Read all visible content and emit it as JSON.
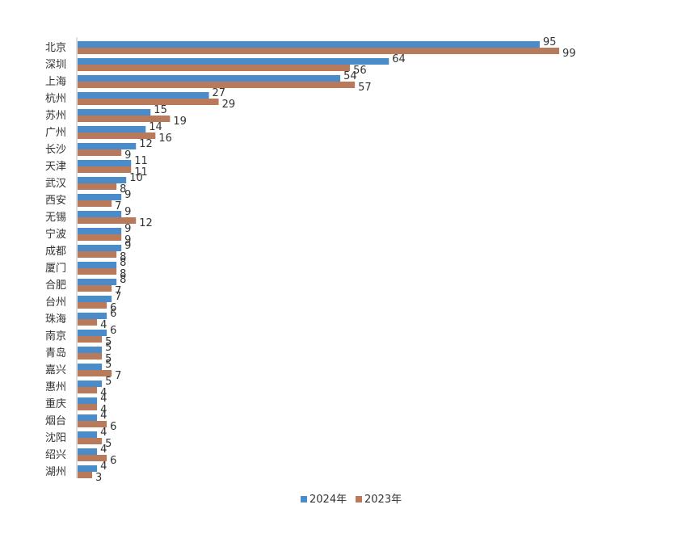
{
  "chart_data": {
    "type": "bar",
    "orientation": "horizontal",
    "title": "",
    "xlabel": "",
    "ylabel": "",
    "categories": [
      "北京",
      "深圳",
      "上海",
      "杭州",
      "苏州",
      "广州",
      "长沙",
      "天津",
      "武汉",
      "西安",
      "无锡",
      "宁波",
      "成都",
      "厦门",
      "合肥",
      "台州",
      "珠海",
      "南京",
      "青岛",
      "嘉兴",
      "惠州",
      "重庆",
      "烟台",
      "沈阳",
      "绍兴",
      "湖州"
    ],
    "series": [
      {
        "name": "2024年",
        "color": "#4a8bc9",
        "values": [
          95,
          64,
          54,
          27,
          15,
          14,
          12,
          11,
          10,
          9,
          9,
          9,
          9,
          8,
          8,
          7,
          6,
          6,
          5,
          5,
          5,
          4,
          4,
          4,
          4,
          4
        ]
      },
      {
        "name": "2023年",
        "color": "#b87a5a",
        "values": [
          99,
          56,
          57,
          29,
          19,
          16,
          9,
          11,
          8,
          7,
          12,
          9,
          8,
          8,
          7,
          6,
          4,
          5,
          5,
          7,
          4,
          4,
          6,
          5,
          6,
          3
        ]
      }
    ],
    "xlim": [
      0,
      100
    ],
    "grid": false,
    "legend": "bottom"
  }
}
